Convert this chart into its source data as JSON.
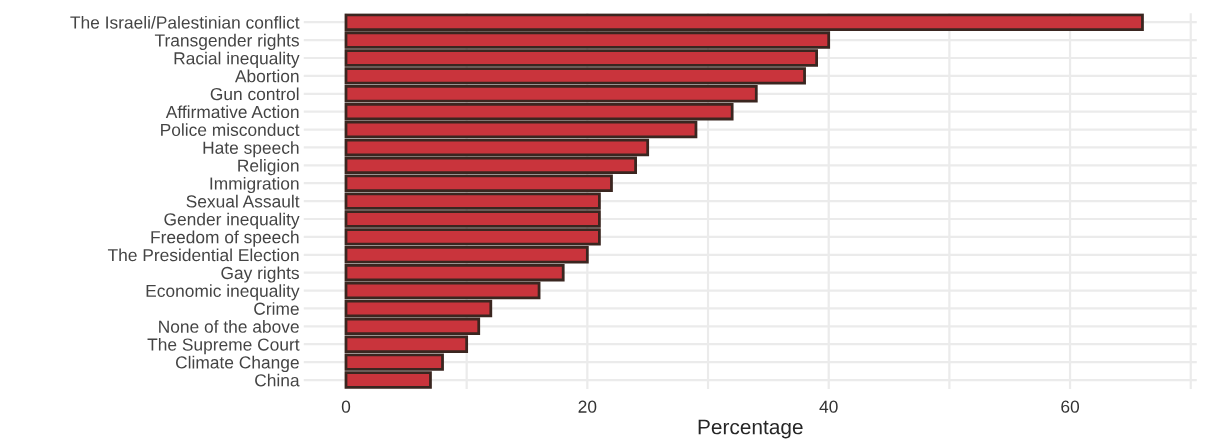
{
  "chart_data": {
    "type": "bar",
    "orientation": "horizontal",
    "xlabel": "Percentage",
    "categories": [
      "The Israeli/Palestinian conflict",
      "Transgender rights",
      "Racial inequality",
      "Abortion",
      "Gun control",
      "Affirmative Action",
      "Police misconduct",
      "Hate speech",
      "Religion",
      "Immigration",
      "Sexual Assault",
      "Gender inequality",
      "Freedom of speech",
      "The Presidential Election",
      "Gay rights",
      "Economic inequality",
      "Crime",
      "None of the above",
      "The Supreme Court",
      "Climate Change",
      "China"
    ],
    "values": [
      66,
      40,
      39,
      38,
      34,
      32,
      29,
      25,
      24,
      22,
      21,
      21,
      21,
      20,
      18,
      16,
      12,
      11,
      10,
      8,
      7
    ],
    "color": "#c9343c",
    "xlim": [
      -3.5,
      70.5
    ],
    "xticks": [
      0,
      {
        "value": 10,
        "label": null
      },
      20,
      {
        "value": 30,
        "label": null
      },
      40,
      {
        "value": 50,
        "label": null
      },
      60,
      {
        "value": 70,
        "label": null
      }
    ],
    "grid": true
  }
}
